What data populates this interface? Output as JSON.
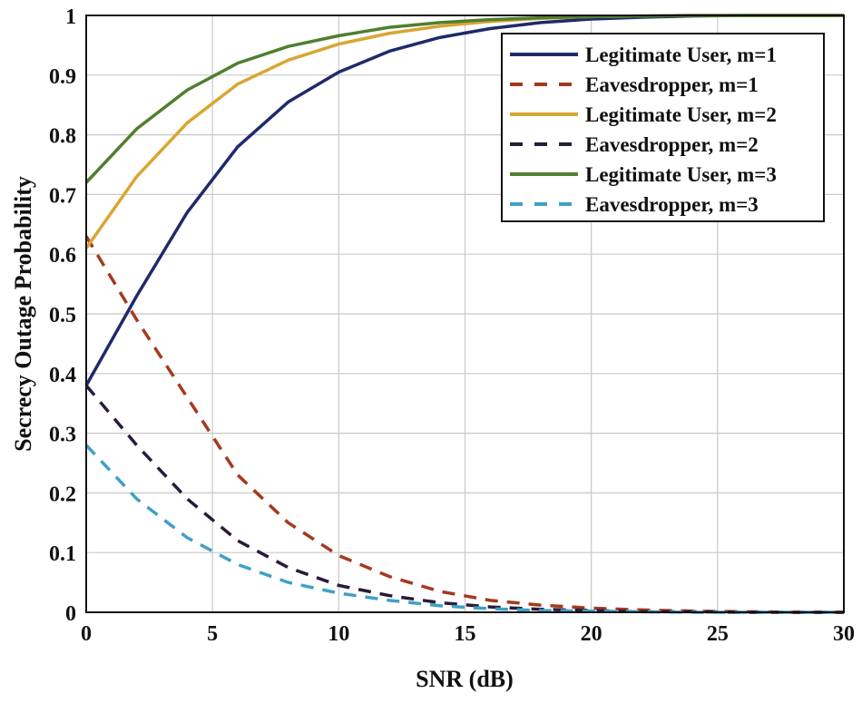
{
  "chart_data": {
    "type": "line",
    "title": "",
    "xlabel": "SNR (dB)",
    "ylabel": "Secrecy Outage Probability",
    "xlim": [
      0,
      30
    ],
    "ylim": [
      0,
      1
    ],
    "xticks": [
      "0",
      "5",
      "10",
      "15",
      "20",
      "25",
      "30"
    ],
    "yticks": [
      "0",
      "0.1",
      "0.2",
      "0.3",
      "0.4",
      "0.5",
      "0.6",
      "0.7",
      "0.8",
      "0.9",
      "1"
    ],
    "grid": true,
    "legend_position": "top-right",
    "x": [
      0,
      2,
      4,
      6,
      8,
      10,
      12,
      14,
      16,
      18,
      20,
      22,
      24,
      26,
      28,
      30
    ],
    "series": [
      {
        "name": "Legitimate User, m=1",
        "style": "solid",
        "color": "#1f2a6b",
        "values": [
          0.38,
          0.53,
          0.67,
          0.78,
          0.855,
          0.905,
          0.94,
          0.963,
          0.978,
          0.988,
          0.994,
          0.997,
          0.999,
          1,
          1,
          1
        ]
      },
      {
        "name": "Eavesdropper, m=1",
        "style": "dashed",
        "color": "#a33a1e",
        "values": [
          0.63,
          0.49,
          0.36,
          0.23,
          0.15,
          0.095,
          0.06,
          0.035,
          0.02,
          0.012,
          0.007,
          0.004,
          0.002,
          0.001,
          0,
          0
        ]
      },
      {
        "name": "Legitimate User, m=2",
        "style": "solid",
        "color": "#d9a533",
        "values": [
          0.61,
          0.73,
          0.82,
          0.885,
          0.925,
          0.952,
          0.97,
          0.982,
          0.99,
          0.995,
          0.998,
          0.999,
          1,
          1,
          1,
          1
        ]
      },
      {
        "name": "Eavesdropper, m=2",
        "style": "dashed",
        "color": "#2a1a3a",
        "values": [
          0.38,
          0.28,
          0.19,
          0.12,
          0.075,
          0.045,
          0.028,
          0.016,
          0.009,
          0.005,
          0.003,
          0.001,
          0.001,
          0,
          0,
          0
        ]
      },
      {
        "name": "Legitimate User, m=3",
        "style": "solid",
        "color": "#4f7f2e",
        "values": [
          0.72,
          0.81,
          0.875,
          0.92,
          0.948,
          0.966,
          0.98,
          0.988,
          0.993,
          0.996,
          0.998,
          0.999,
          1,
          1,
          1,
          1
        ]
      },
      {
        "name": "Eavesdropper, m=3",
        "style": "dashed",
        "color": "#3fa0c8",
        "values": [
          0.28,
          0.19,
          0.125,
          0.08,
          0.05,
          0.032,
          0.02,
          0.011,
          0.006,
          0.003,
          0.002,
          0.001,
          0,
          0,
          0,
          0
        ]
      }
    ]
  }
}
